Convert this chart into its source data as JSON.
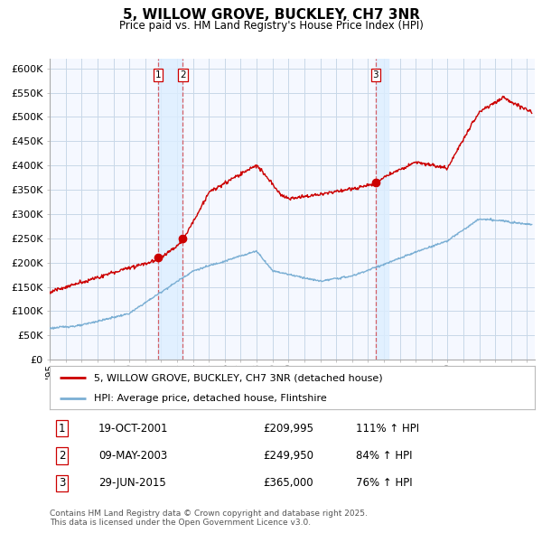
{
  "title": "5, WILLOW GROVE, BUCKLEY, CH7 3NR",
  "subtitle": "Price paid vs. HM Land Registry's House Price Index (HPI)",
  "ylim": [
    0,
    620000
  ],
  "yticks": [
    0,
    50000,
    100000,
    150000,
    200000,
    250000,
    300000,
    350000,
    400000,
    450000,
    500000,
    550000,
    600000
  ],
  "ytick_labels": [
    "£0",
    "£50K",
    "£100K",
    "£150K",
    "£200K",
    "£250K",
    "£300K",
    "£350K",
    "£400K",
    "£450K",
    "£500K",
    "£550K",
    "£600K"
  ],
  "sale_color": "#cc0000",
  "hpi_color": "#7bafd4",
  "shade_color": "#ddeeff",
  "sale_label": "5, WILLOW GROVE, BUCKLEY, CH7 3NR (detached house)",
  "hpi_label": "HPI: Average price, detached house, Flintshire",
  "transactions": [
    {
      "num": 1,
      "date_label": "19-OCT-2001",
      "price": 209995,
      "pct": "111%",
      "date_x": 2001.8
    },
    {
      "num": 2,
      "date_label": "09-MAY-2003",
      "price": 249950,
      "pct": "84%",
      "date_x": 2003.36
    },
    {
      "num": 3,
      "date_label": "29-JUN-2015",
      "price": 365000,
      "pct": "76%",
      "date_x": 2015.49
    }
  ],
  "footer": "Contains HM Land Registry data © Crown copyright and database right 2025.\nThis data is licensed under the Open Government Licence v3.0.",
  "background_color": "#f5f8ff",
  "grid_color": "#c8d8e8",
  "xlim_start": 1995,
  "xlim_end": 2025.5
}
